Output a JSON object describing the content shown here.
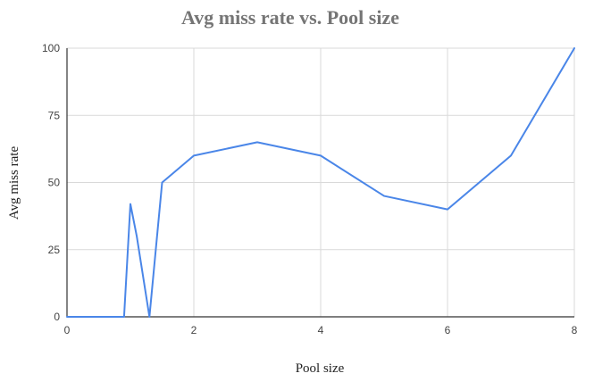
{
  "chart_data": {
    "type": "line",
    "title": "Avg miss rate vs. Pool size",
    "xlabel": "Pool size",
    "ylabel": "Avg miss rate",
    "xlim": [
      0,
      8
    ],
    "ylim": [
      0,
      100
    ],
    "x_ticks": [
      0,
      2,
      4,
      6,
      8
    ],
    "y_ticks": [
      0,
      25,
      50,
      75,
      100
    ],
    "grid": true,
    "series": [
      {
        "color": "#4a86e8",
        "x": [
          0,
          0.9,
          1.0,
          1.1,
          1.3,
          1.5,
          2,
          3,
          4,
          5,
          6,
          7,
          8
        ],
        "y": [
          0,
          0,
          42,
          30,
          0,
          50,
          60,
          65,
          60,
          45,
          40,
          60,
          100
        ]
      }
    ]
  }
}
